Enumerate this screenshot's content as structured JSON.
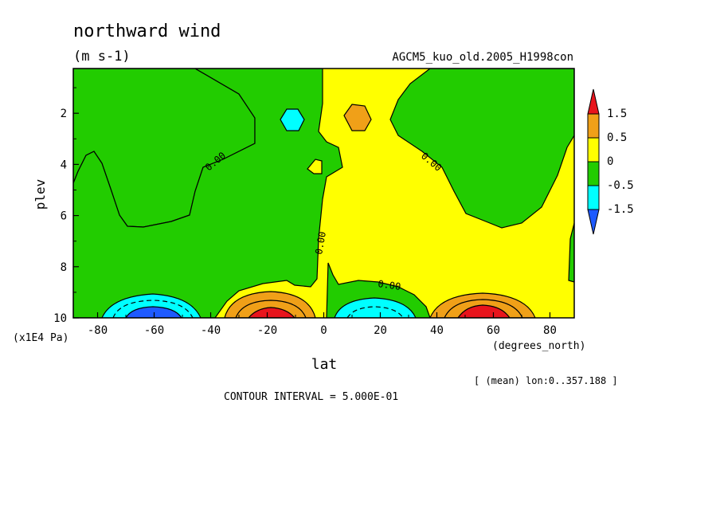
{
  "chart_data": {
    "type": "contour",
    "title": "northward wind",
    "units": "(m s-1)",
    "dataset_label": "AGCM5_kuo_old.2005_H1998con",
    "xlabel": "lat",
    "xunits": "(degrees_north)",
    "ylabel": "plev",
    "yunits": "(x1E4 Pa)",
    "x_ticks": [
      "-80",
      "-60",
      "-40",
      "-20",
      "0",
      "20",
      "40",
      "60",
      "80"
    ],
    "y_ticks": [
      "2",
      "4",
      "6",
      "8",
      "10"
    ],
    "xlim": [
      -88.6,
      88.6
    ],
    "ylim": [
      10.0,
      0.25
    ],
    "averaging_note": "[ (mean) lon:0..357.188 ]",
    "contour_interval_text": "CONTOUR INTERVAL = 5.000E-01",
    "contour_label": "0.00",
    "colorbar": {
      "labels": [
        "1.5",
        "0.5",
        "0",
        "-0.5",
        "-1.5"
      ],
      "levels": [
        {
          "range": "> 1.5",
          "color": "#e8141c"
        },
        {
          "range": "0.5 to 1.5",
          "color": "#f0a018"
        },
        {
          "range": "0 to 0.5",
          "color": "#ffff00"
        },
        {
          "range": "-0.5 to 0",
          "color": "#22cc00"
        },
        {
          "range": "-1.5 to -0.5",
          "color": "#00ffff"
        },
        {
          "range": "< -1.5",
          "color": "#1e5aff"
        }
      ]
    },
    "features": [
      {
        "description": "negative maximum near surface",
        "lat_center": -60,
        "plev_top": 9.2,
        "min_value": -1.5
      },
      {
        "description": "positive maximum near surface",
        "lat_center": -17,
        "plev_top": 8.9,
        "max_value": 2.0
      },
      {
        "description": "negative maximum near surface",
        "lat_center": 17,
        "plev_top": 9.0,
        "min_value": -1.0
      },
      {
        "description": "positive maximum near surface",
        "lat_center": 57,
        "plev_top": 9.1,
        "max_value": 2.0
      },
      {
        "description": "upper level negative cell",
        "lat_center": -12,
        "plev": 2.0,
        "min_value": -0.5
      },
      {
        "description": "upper level positive cell",
        "lat_center": 12,
        "plev": 2.0,
        "max_value": 0.5
      }
    ]
  }
}
